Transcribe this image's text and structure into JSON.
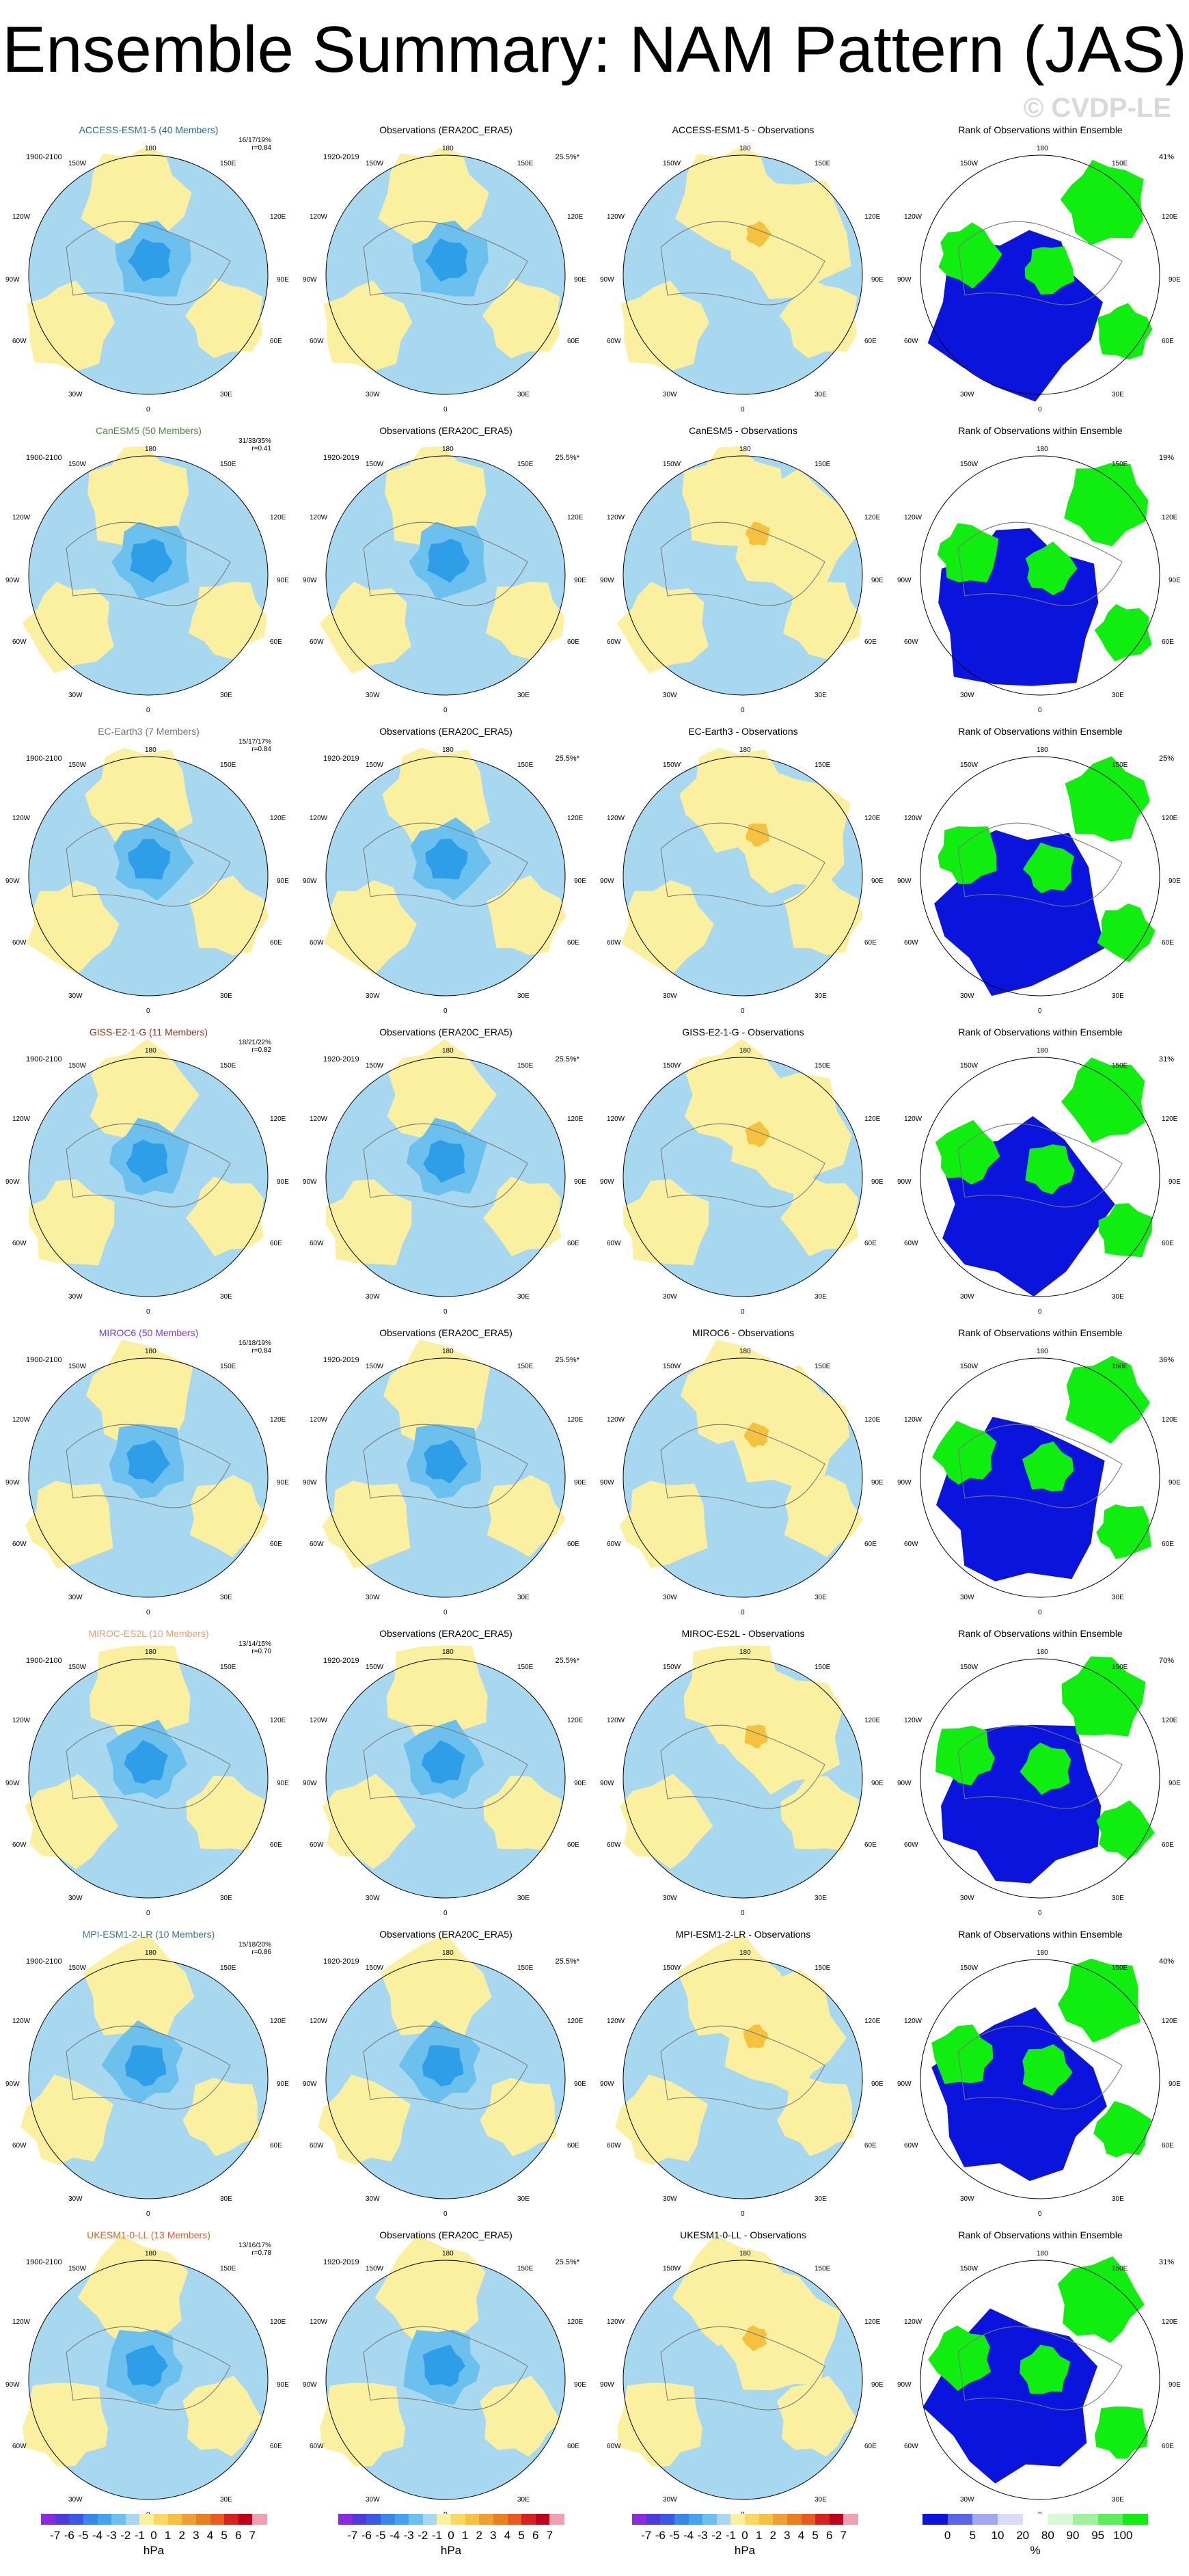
{
  "page": {
    "title": "Ensemble Summary: NAM Pattern (JAS)",
    "watermark": "© CVDP-LE"
  },
  "colors": {
    "ocean_blue": "#a8d8f0",
    "land_yellow": "#fbf0a0",
    "mid_blue": "#6cc0ee",
    "deep_blue": "#2f9ee8",
    "orange": "#f4c23c",
    "rank_blue": "#0a14dc",
    "rank_green": "#10ee10",
    "rank_white": "#ffffff"
  },
  "map_labels": {
    "lon_top": "180",
    "lon_150w": "150W",
    "lon_150e": "150E",
    "lon_120w": "120W",
    "lon_120e": "120E",
    "lon_90w": "90W",
    "lon_90e": "90E",
    "lon_60w": "60W",
    "lon_60e": "60E",
    "lon_30w": "30W",
    "lon_30e": "30E",
    "lon_bottom": "0"
  },
  "rows": [
    {
      "model": "ACCESS-ESM1-5 (40 Members)",
      "model_color": "#1a6e9e",
      "model_period": "1900-2100",
      "stats": "16/17/19%",
      "corr": "r=0.84",
      "obs_title": "Observations (ERA20C_ERA5)",
      "obs_period": "1920-2019",
      "obs_pct": "25.5%*",
      "diff_title": "ACCESS-ESM1-5 - Observations",
      "rank_title": "Rank of Observations within Ensemble",
      "rank_pct": "41%"
    },
    {
      "model": "CanESM5 (50 Members)",
      "model_color": "#4a8a40",
      "model_period": "1900-2100",
      "stats": "31/33/35%",
      "corr": "r=0.41",
      "obs_title": "Observations (ERA20C_ERA5)",
      "obs_period": "1920-2019",
      "obs_pct": "25.5%*",
      "diff_title": "CanESM5 - Observations",
      "rank_title": "Rank of Observations within Ensemble",
      "rank_pct": "19%"
    },
    {
      "model": "EC-Earth3 (7 Members)",
      "model_color": "#777777",
      "model_period": "1900-2100",
      "stats": "15/17/17%",
      "corr": "r=0.84",
      "obs_title": "Observations (ERA20C_ERA5)",
      "obs_period": "1920-2019",
      "obs_pct": "25.5%*",
      "diff_title": "EC-Earth3 - Observations",
      "rank_title": "Rank of Observations within Ensemble",
      "rank_pct": "25%"
    },
    {
      "model": "GISS-E2-1-G (11 Members)",
      "model_color": "#8a3a1a",
      "model_period": "1900-2100",
      "stats": "18/21/22%",
      "corr": "r=0.82",
      "obs_title": "Observations (ERA20C_ERA5)",
      "obs_period": "1920-2019",
      "obs_pct": "25.5%*",
      "diff_title": "GISS-E2-1-G - Observations",
      "rank_title": "Rank of Observations within Ensemble",
      "rank_pct": "31%"
    },
    {
      "model": "MIROC6 (50 Members)",
      "model_color": "#7a3ae0",
      "model_period": "1900-2100",
      "stats": "16/18/19%",
      "corr": "r=0.84",
      "obs_title": "Observations (ERA20C_ERA5)",
      "obs_period": "1920-2019",
      "obs_pct": "25.5%*",
      "diff_title": "MIROC6 - Observations",
      "rank_title": "Rank of Observations within Ensemble",
      "rank_pct": "36%"
    },
    {
      "model": "MIROC-ES2L (10 Members)",
      "model_color": "#e8a070",
      "model_period": "1900-2100",
      "stats": "13/14/15%",
      "corr": "r=0.70",
      "obs_title": "Observations (ERA20C_ERA5)",
      "obs_period": "1920-2019",
      "obs_pct": "25.5%*",
      "diff_title": "MIROC-ES2L - Observations",
      "rank_title": "Rank of Observations within Ensemble",
      "rank_pct": "70%"
    },
    {
      "model": "MPI-ESM1-2-LR (10 Members)",
      "model_color": "#3a7a8a",
      "model_period": "1900-2100",
      "stats": "15/18/20%",
      "corr": "r=0.86",
      "obs_title": "Observations (ERA20C_ERA5)",
      "obs_period": "1920-2019",
      "obs_pct": "25.5%*",
      "diff_title": "MPI-ESM1-2-LR - Observations",
      "rank_title": "Rank of Observations within Ensemble",
      "rank_pct": "40%"
    },
    {
      "model": "UKESM1-0-LL (13 Members)",
      "model_color": "#e06020",
      "model_period": "1900-2100",
      "stats": "13/16/17%",
      "corr": "r=0.78",
      "obs_title": "Observations (ERA20C_ERA5)",
      "obs_period": "1920-2019",
      "obs_pct": "25.5%*",
      "diff_title": "UKESM1-0-LL - Observations",
      "rank_title": "Rank of Observations within Ensemble",
      "rank_pct": "31%"
    }
  ],
  "colorbars": [
    {
      "unit": "hPa",
      "colors": [
        "#8a2be2",
        "#4b3ae0",
        "#3a58e8",
        "#3a86ea",
        "#42a4ee",
        "#6cc0ee",
        "#a8d8f0",
        "#fbf0a0",
        "#fbd860",
        "#f4c23c",
        "#f0a030",
        "#ec8020",
        "#e85a1e",
        "#d82020",
        "#c00018",
        "#f0a0b0"
      ],
      "ticks": [
        "-7",
        "-6",
        "-5",
        "-4",
        "-3",
        "-2",
        "-1",
        "0",
        "1",
        "2",
        "3",
        "4",
        "5",
        "6",
        "7"
      ]
    },
    {
      "unit": "hPa",
      "colors": [
        "#8a2be2",
        "#4b3ae0",
        "#3a58e8",
        "#3a86ea",
        "#42a4ee",
        "#6cc0ee",
        "#a8d8f0",
        "#fbf0a0",
        "#fbd860",
        "#f4c23c",
        "#f0a030",
        "#ec8020",
        "#e85a1e",
        "#d82020",
        "#c00018",
        "#f0a0b0"
      ],
      "ticks": [
        "-7",
        "-6",
        "-5",
        "-4",
        "-3",
        "-2",
        "-1",
        "0",
        "1",
        "2",
        "3",
        "4",
        "5",
        "6",
        "7"
      ]
    },
    {
      "unit": "hPa",
      "colors": [
        "#8a2be2",
        "#4b3ae0",
        "#3a58e8",
        "#3a86ea",
        "#42a4ee",
        "#6cc0ee",
        "#a8d8f0",
        "#fbf0a0",
        "#fbd860",
        "#f4c23c",
        "#f0a030",
        "#ec8020",
        "#e85a1e",
        "#d82020",
        "#c00018",
        "#f0a0b0"
      ],
      "ticks": [
        "-7",
        "-6",
        "-5",
        "-4",
        "-3",
        "-2",
        "-1",
        "0",
        "1",
        "2",
        "3",
        "4",
        "5",
        "6",
        "7"
      ]
    },
    {
      "unit": "%",
      "colors": [
        "#0a14dc",
        "#5a64e8",
        "#a0a8f0",
        "#d8dcf8",
        "#ffffff",
        "#d8f8d8",
        "#a0f0a0",
        "#5aee5a",
        "#10ee10"
      ],
      "ticks": [
        "0",
        "5",
        "10",
        "20",
        "80",
        "90",
        "95",
        "100"
      ]
    }
  ],
  "chart_data": {
    "type": "heatmap",
    "title": "Ensemble Summary: NAM Pattern (JAS)",
    "units": "hPa",
    "rank_units": "%",
    "models": [
      "ACCESS-ESM1-5",
      "CanESM5",
      "EC-Earth3",
      "GISS-E2-1-G",
      "MIROC6",
      "MIROC-ES2L",
      "MPI-ESM1-2-LR",
      "UKESM1-0-LL"
    ],
    "members": [
      40,
      50,
      7,
      11,
      50,
      10,
      10,
      13
    ],
    "pct_variance_explained": [
      "16/17/19%",
      "31/33/35%",
      "15/17/17%",
      "18/21/22%",
      "16/18/19%",
      "13/14/15%",
      "15/18/20%",
      "13/16/17%"
    ],
    "pattern_correlation": [
      0.84,
      0.41,
      0.84,
      0.82,
      0.84,
      0.7,
      0.86,
      0.78
    ],
    "observations_pct_variance": "25.5%*",
    "rank_pct": [
      "41%",
      "19%",
      "25%",
      "31%",
      "36%",
      "70%",
      "40%",
      "31%"
    ],
    "colorbar_levels": [
      -7,
      -6,
      -5,
      -4,
      -3,
      -2,
      -1,
      0,
      1,
      2,
      3,
      4,
      5,
      6,
      7
    ],
    "rank_levels": [
      0,
      5,
      10,
      20,
      80,
      90,
      95,
      100
    ]
  }
}
